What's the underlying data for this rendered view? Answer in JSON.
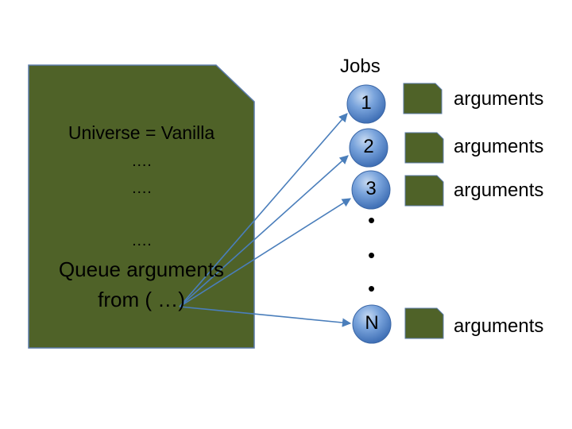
{
  "document": {
    "lines": [
      "Universe = Vanilla",
      "….",
      "….",
      "….",
      "Queue arguments",
      "from ( …)"
    ]
  },
  "jobs": {
    "title": "Jobs",
    "items": [
      {
        "label": "1",
        "arguments": "arguments"
      },
      {
        "label": "2",
        "arguments": "arguments"
      },
      {
        "label": "3",
        "arguments": "arguments"
      },
      {
        "label": "N",
        "arguments": "arguments"
      }
    ],
    "ellipsis": [
      "•",
      "•",
      "•"
    ]
  },
  "colors": {
    "document_fill": "#4f6228",
    "document_stroke": "#3f5e84",
    "job_circle": "#4f81bd",
    "arrow": "#4a7ebb"
  }
}
